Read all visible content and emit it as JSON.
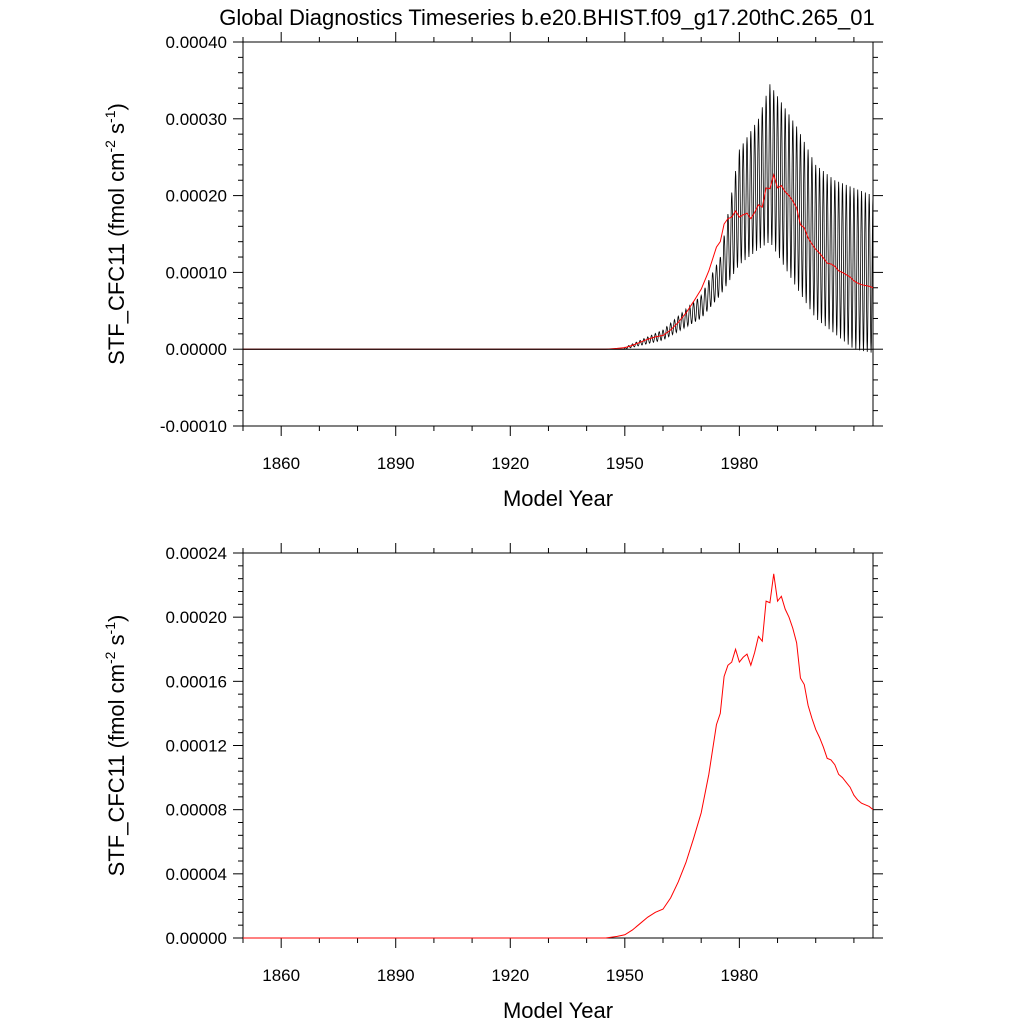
{
  "figure_title": "Global Diagnostics Timeseries b.e20.BHIST.f09_g17.20thC.265_01",
  "chart_data": [
    {
      "type": "line",
      "xlabel": "Model Year",
      "ylabel": {
        "var": "STF_CFC11 (fmol cm",
        "exp1": "-2",
        "mid": " s",
        "exp2": "-1",
        "end": ")"
      },
      "xlim": [
        1850,
        2015
      ],
      "ylim": [
        -0.0001,
        0.0004
      ],
      "x_ticks": [
        "1860",
        "1890",
        "1920",
        "1950",
        "1980"
      ],
      "y_ticks": [
        "-0.00010",
        "0.00000",
        "0.00010",
        "0.00020",
        "0.00030",
        "0.00040"
      ],
      "zero_line": true,
      "series": [
        {
          "color": "#000000",
          "style": "monthly-oscillating",
          "annual_mean_ref": 1,
          "envelope_years": [
            1950,
            1960,
            1970,
            1975,
            1980,
            1985,
            1988,
            1995,
            2000,
            2005,
            2010,
            2015
          ],
          "envelope_high": [
            2.5e-06,
            2.5e-05,
            7e-05,
            0.00012,
            0.00026,
            0.0003,
            0.000345,
            0.00029,
            0.00024,
            0.00022,
            0.00021,
            0.0002
          ],
          "envelope_low": [
            0.0,
            1.2e-05,
            4e-05,
            7e-05,
            0.00011,
            0.00013,
            0.00014,
            8e-05,
            4e-05,
            2e-05,
            0.0,
            -5e-06
          ]
        },
        {
          "color": "#ff0000",
          "style": "annual-mean"
        }
      ]
    },
    {
      "type": "line",
      "xlabel": "Model Year",
      "ylabel": {
        "var": "STF_CFC11 (fmol cm",
        "exp1": "-2",
        "mid": " s",
        "exp2": "-1",
        "end": ")"
      },
      "xlim": [
        1850,
        2015
      ],
      "ylim": [
        0,
        0.00024
      ],
      "x_ticks": [
        "1860",
        "1890",
        "1920",
        "1950",
        "1980"
      ],
      "y_ticks": [
        "0.00000",
        "0.00004",
        "0.00008",
        "0.00012",
        "0.00016",
        "0.00020",
        "0.00024"
      ],
      "series": [
        {
          "color": "#ff0000",
          "style": "annual-mean",
          "x": [
            1850,
            1945,
            1948,
            1950,
            1952,
            1954,
            1956,
            1958,
            1960,
            1962,
            1964,
            1966,
            1968,
            1970,
            1972,
            1974,
            1975,
            1976,
            1977,
            1978,
            1979,
            1980,
            1981,
            1982,
            1983,
            1984,
            1985,
            1986,
            1987,
            1988,
            1989,
            1990,
            1991,
            1992,
            1993,
            1994,
            1995,
            1996,
            1997,
            1998,
            1999,
            2000,
            2001,
            2002,
            2003,
            2004,
            2005,
            2006,
            2007,
            2008,
            2009,
            2010,
            2011,
            2012,
            2013,
            2014,
            2015
          ],
          "y": [
            0,
            0,
            1e-06,
            2e-06,
            5e-06,
            9e-06,
            1.3e-05,
            1.6e-05,
            1.8e-05,
            2.5e-05,
            3.5e-05,
            4.7e-05,
            6.2e-05,
            7.8e-05,
            0.000102,
            0.000133,
            0.00014,
            0.000163,
            0.00017,
            0.000172,
            0.00018,
            0.000172,
            0.000175,
            0.000177,
            0.00017,
            0.000178,
            0.000188,
            0.000185,
            0.00021,
            0.000209,
            0.000227,
            0.00021,
            0.000213,
            0.000205,
            0.0002,
            0.000193,
            0.000184,
            0.000162,
            0.000158,
            0.000145,
            0.000137,
            0.00013,
            0.000125,
            0.000119,
            0.000112,
            0.000111,
            0.000108,
            0.000102,
            0.0001,
            9.7e-05,
            9.4e-05,
            8.9e-05,
            8.6e-05,
            8.4e-05,
            8.3e-05,
            8.2e-05,
            8e-05
          ]
        }
      ]
    }
  ]
}
